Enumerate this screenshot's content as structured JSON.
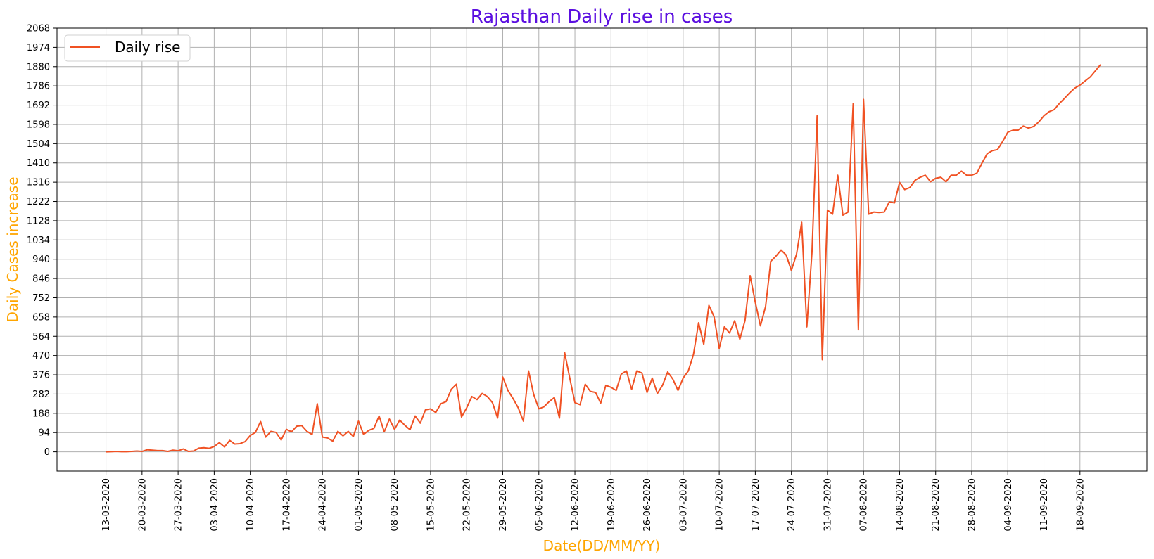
{
  "chart_data": {
    "type": "line",
    "title": "Rajasthan Daily rise in cases",
    "xlabel": "Date(DD/MM/YY)",
    "ylabel": "Daily Cases increase",
    "colors": {
      "title": "#5b0fe0",
      "axis_labels": "#ffa500",
      "line": "#f05123",
      "grid": "#b0b0b0"
    },
    "grid": true,
    "legend": {
      "placement": "top-left",
      "entries": [
        "Daily rise"
      ]
    },
    "ylim": [
      -94,
      2068
    ],
    "y_ticks": [
      0,
      94,
      188,
      282,
      376,
      470,
      564,
      658,
      752,
      846,
      940,
      1034,
      1128,
      1222,
      1316,
      1410,
      1504,
      1598,
      1692,
      1786,
      1880,
      1974,
      2068
    ],
    "start_date": "13-03-2020",
    "x_ticks": [
      {
        "day": 0,
        "label": "13-03-2020"
      },
      {
        "day": 7,
        "label": "20-03-2020"
      },
      {
        "day": 14,
        "label": "27-03-2020"
      },
      {
        "day": 21,
        "label": "03-04-2020"
      },
      {
        "day": 28,
        "label": "10-04-2020"
      },
      {
        "day": 35,
        "label": "17-04-2020"
      },
      {
        "day": 42,
        "label": "24-04-2020"
      },
      {
        "day": 49,
        "label": "01-05-2020"
      },
      {
        "day": 56,
        "label": "08-05-2020"
      },
      {
        "day": 63,
        "label": "15-05-2020"
      },
      {
        "day": 70,
        "label": "22-05-2020"
      },
      {
        "day": 77,
        "label": "29-05-2020"
      },
      {
        "day": 84,
        "label": "05-06-2020"
      },
      {
        "day": 91,
        "label": "12-06-2020"
      },
      {
        "day": 98,
        "label": "19-06-2020"
      },
      {
        "day": 105,
        "label": "26-06-2020"
      },
      {
        "day": 112,
        "label": "03-07-2020"
      },
      {
        "day": 119,
        "label": "10-07-2020"
      },
      {
        "day": 126,
        "label": "17-07-2020"
      },
      {
        "day": 133,
        "label": "24-07-2020"
      },
      {
        "day": 140,
        "label": "31-07-2020"
      },
      {
        "day": 147,
        "label": "07-08-2020"
      },
      {
        "day": 154,
        "label": "14-08-2020"
      },
      {
        "day": 161,
        "label": "21-08-2020"
      },
      {
        "day": 168,
        "label": "28-08-2020"
      },
      {
        "day": 175,
        "label": "04-09-2020"
      },
      {
        "day": 182,
        "label": "11-09-2020"
      },
      {
        "day": 189,
        "label": "18-09-2020"
      }
    ],
    "xlim": [
      -9.5,
      202
    ],
    "series": [
      {
        "name": "Daily rise",
        "values": [
          0,
          1,
          2,
          1,
          1,
          2,
          4,
          2,
          10,
          8,
          6,
          6,
          2,
          8,
          5,
          14,
          2,
          4,
          18,
          20,
          17,
          26,
          45,
          24,
          56,
          38,
          40,
          50,
          80,
          95,
          148,
          72,
          100,
          95,
          58,
          110,
          98,
          125,
          128,
          100,
          85,
          235,
          72,
          68,
          52,
          100,
          78,
          100,
          75,
          150,
          85,
          105,
          115,
          175,
          98,
          160,
          110,
          155,
          130,
          108,
          175,
          140,
          205,
          210,
          192,
          235,
          245,
          305,
          330,
          170,
          215,
          270,
          255,
          285,
          270,
          240,
          165,
          365,
          300,
          260,
          215,
          150,
          395,
          280,
          210,
          220,
          245,
          265,
          165,
          485,
          360,
          240,
          230,
          330,
          295,
          290,
          238,
          325,
          315,
          300,
          380,
          395,
          305,
          395,
          385,
          290,
          360,
          285,
          325,
          390,
          355,
          300,
          360,
          395,
          475,
          630,
          525,
          715,
          660,
          505,
          610,
          580,
          640,
          550,
          640,
          860,
          730,
          615,
          710,
          930,
          955,
          985,
          960,
          885,
          965,
          1120,
          610,
          975,
          1640,
          450,
          1180,
          1160,
          1350,
          1155,
          1170,
          1700,
          595,
          1720,
          1160,
          1170,
          1168,
          1170,
          1220,
          1215,
          1315,
          1280,
          1290,
          1325,
          1340,
          1350,
          1318,
          1335,
          1340,
          1318,
          1350,
          1350,
          1370,
          1350,
          1350,
          1360,
          1410,
          1455,
          1470,
          1475,
          1515,
          1560,
          1570,
          1570,
          1590,
          1580,
          1588,
          1610,
          1640,
          1660,
          1670,
          1700,
          1725,
          1752,
          1775,
          1790,
          1810,
          1830,
          1860,
          1890
        ]
      }
    ]
  }
}
